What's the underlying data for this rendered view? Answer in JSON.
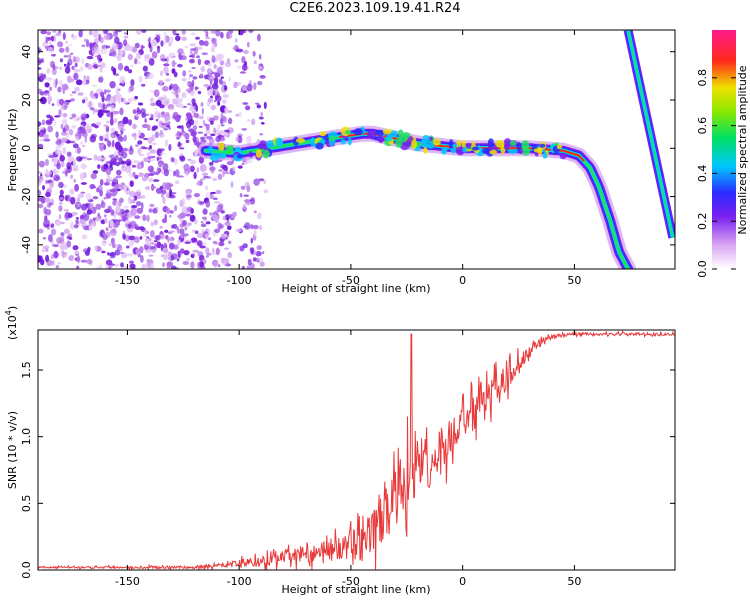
{
  "title": "C2E6.2023.109.19.41.R24",
  "chart_data": [
    {
      "type": "heatmap",
      "name": "spectrogram",
      "xlabel": "Height of straight line (km)",
      "ylabel": "Frequency (Hz)",
      "xlim": [
        -190,
        95
      ],
      "ylim": [
        -50,
        49
      ],
      "xticks": [
        -150,
        -100,
        -50,
        0,
        50
      ],
      "yticks": [
        -40,
        -20,
        0,
        20,
        40
      ],
      "colorbar": {
        "label": "Normalized spectral amplitude",
        "range": [
          0,
          1
        ],
        "ticks": [
          "0.0",
          "0.2",
          "0.4",
          "0.6",
          "0.8"
        ]
      },
      "noise_region_x": [
        -190,
        -100
      ],
      "ridge": {
        "x": [
          -115,
          -100,
          -80,
          -60,
          -45,
          -40,
          -30,
          -20,
          -10,
          0,
          10,
          30,
          45,
          52,
          57,
          61,
          66,
          70,
          74
        ],
        "freq": [
          -1,
          -2,
          1,
          4,
          6,
          6,
          4,
          2,
          1,
          0,
          0,
          0,
          -1,
          -3,
          -8,
          -16,
          -30,
          -43,
          -50
        ]
      },
      "right_branch": {
        "x": [
          74,
          94
        ],
        "freq": [
          49,
          -37
        ]
      }
    },
    {
      "type": "line",
      "name": "snr",
      "xlabel": "Height of straight line (km)",
      "ylabel": "SNR (10 * v/v)",
      "scale_label": "(x10",
      "scale_exp": "4",
      "scale_close": ")",
      "xlim": [
        -190,
        95
      ],
      "ylim": [
        0,
        1.8
      ],
      "xticks": [
        -150,
        -100,
        -50,
        0,
        50
      ],
      "yticks": [
        "0.0",
        "0.5",
        "1.0",
        "1.5"
      ],
      "color": "#e83a3a",
      "envelope": {
        "x": [
          -190,
          -120,
          -105,
          -90,
          -80,
          -70,
          -60,
          -50,
          -45,
          -40,
          -35,
          -30,
          -25,
          -20,
          -15,
          -10,
          -5,
          0,
          10,
          20,
          30,
          40,
          50,
          60,
          70,
          80,
          95
        ],
        "base": [
          0.02,
          0.02,
          0.04,
          0.06,
          0.1,
          0.12,
          0.15,
          0.18,
          0.2,
          0.28,
          0.4,
          0.55,
          0.68,
          0.75,
          0.82,
          0.9,
          1.0,
          1.1,
          1.25,
          1.45,
          1.65,
          1.75,
          1.77,
          1.77,
          1.77,
          1.77,
          1.77
        ],
        "amp": [
          0.01,
          0.02,
          0.04,
          0.08,
          0.1,
          0.12,
          0.15,
          0.2,
          0.28,
          0.35,
          0.4,
          0.45,
          0.5,
          0.45,
          0.4,
          0.35,
          0.3,
          0.28,
          0.25,
          0.2,
          0.08,
          0.03,
          0.02,
          0.02,
          0.02,
          0.02,
          0.02
        ]
      },
      "spike": {
        "x": -23,
        "y": 1.77
      }
    }
  ]
}
